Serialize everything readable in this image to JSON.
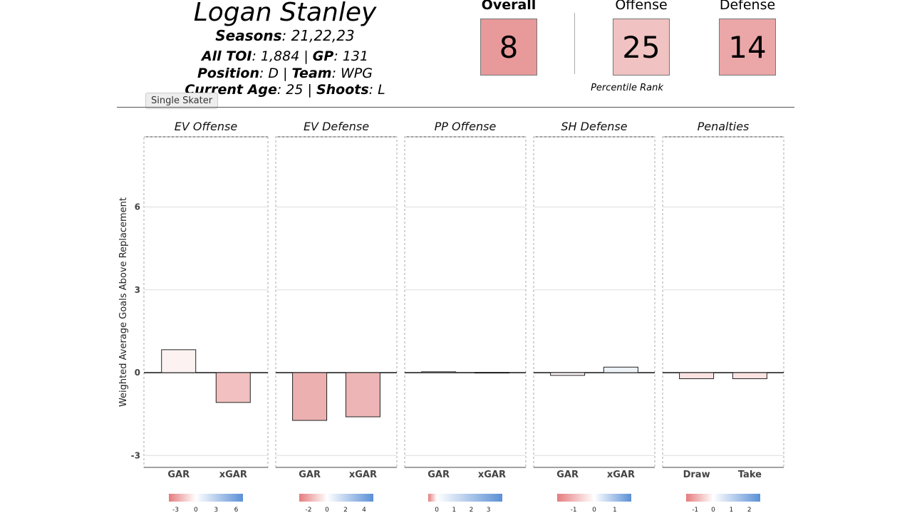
{
  "player": {
    "name": "Logan Stanley",
    "seasons_label": "Seasons",
    "seasons": ": 21,22,23",
    "toi_label": "All TOI",
    "toi": ": 1,884 | ",
    "gp_label": "GP",
    "gp": ": 131",
    "position_label": "Position",
    "position": ": D | ",
    "team_label": "Team",
    "team": ": WPG",
    "age_label": "Current Age",
    "age": ": 25 | ",
    "shoots_label": "Shoots",
    "shoots": ": L"
  },
  "tooltip": "Single Skater",
  "scores": {
    "overall_label": "Overall",
    "overall": "8",
    "overall_color": "#e8999a",
    "offense_label": "Offense",
    "offense": "25",
    "offense_color": "#f0c2c2",
    "defense_label": "Defense",
    "defense": "14",
    "defense_color": "#eba6a7",
    "caption": "Percentile Rank"
  },
  "chart_data": {
    "type": "bar",
    "ylabel": "Weighted Average Goals Above Replacement",
    "ylim": [
      -3.3,
      7.2
    ],
    "yticks": [
      -3,
      0,
      3,
      6
    ],
    "panels": [
      {
        "title": "EV Offense",
        "categories": [
          "GAR",
          "xGAR"
        ],
        "values": [
          0.83,
          -1.08
        ],
        "colors": [
          "#fdf2f2",
          "#f2c0c0"
        ],
        "legend_ticks": [
          "-3",
          "0",
          "3",
          "6"
        ],
        "legend_range": [
          -4,
          7
        ]
      },
      {
        "title": "EV Defense",
        "categories": [
          "GAR",
          "xGAR"
        ],
        "values": [
          -1.73,
          -1.6
        ],
        "colors": [
          "#ecb0b0",
          "#edb5b5"
        ],
        "legend_ticks": [
          "-2",
          "0",
          "2",
          "4"
        ],
        "legend_range": [
          -3,
          5
        ]
      },
      {
        "title": "PP Offense",
        "categories": [
          "GAR",
          "xGAR"
        ],
        "values": [
          0.03,
          0.01
        ],
        "colors": [
          "#fdfdfe",
          "#fefefe"
        ],
        "legend_ticks": [
          "0",
          "1",
          "2",
          "3"
        ],
        "legend_range": [
          -0.5,
          3.8
        ]
      },
      {
        "title": "SH Defense",
        "categories": [
          "GAR",
          "xGAR"
        ],
        "values": [
          -0.1,
          0.2
        ],
        "colors": [
          "#fcf4f4",
          "#eef3f8"
        ],
        "legend_ticks": [
          "-1",
          "0",
          "1"
        ],
        "legend_range": [
          -1.8,
          1.8
        ]
      },
      {
        "title": "Penalties",
        "categories": [
          "Draw",
          "Take"
        ],
        "values": [
          -0.22,
          -0.22
        ],
        "colors": [
          "#fbe2e2",
          "#fbe2e2"
        ],
        "legend_ticks": [
          "-1",
          "0",
          "1",
          "2"
        ],
        "legend_range": [
          -1.5,
          2.6
        ]
      }
    ]
  }
}
